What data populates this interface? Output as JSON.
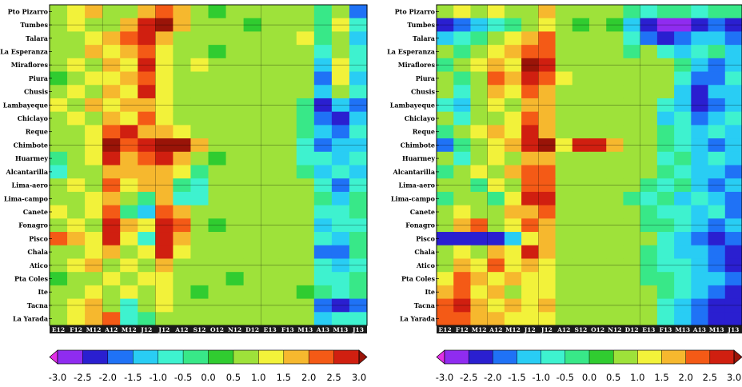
{
  "palette": [
    "#e22fe6",
    "#8f2cf0",
    "#2a1fd0",
    "#1f72f6",
    "#29cdf4",
    "#3ef2cf",
    "#38e888",
    "#30cc30",
    "#9ee23a",
    "#f2f23a",
    "#f6b82e",
    "#f45a16",
    "#d01f10",
    "#9a1408"
  ],
  "stations": [
    "Pto Pizarro",
    "Tumbes",
    "Talara",
    "La Esperanza",
    "Miraflores",
    "Piura",
    "Chusis",
    "Lambayeque",
    "Chiclayo",
    "Reque",
    "Chimbote",
    "Huarmey",
    "Alcantarilla",
    "Lima-aero",
    "Lima-campo",
    "Canete",
    "Fonagro",
    "Pisco",
    "Chala",
    "Atico",
    "Pta Coles",
    "Ite",
    "Tacna",
    "La Yarada"
  ],
  "colorbar_ticks": [
    "-3.0",
    "-2.5",
    "-2.0",
    "-1.5",
    "-1.0",
    "-0.5",
    "0.0",
    "0.5",
    "1.0",
    "1.5",
    "2.0",
    "2.5",
    "3.0"
  ],
  "chart_data": [
    {
      "type": "heatmap",
      "title": "",
      "xlabel": "",
      "ylabel": "",
      "x_categories": [
        "E12",
        "F12",
        "M12",
        "A12",
        "M12",
        "J12",
        "J12",
        "A12",
        "S12",
        "O12",
        "N12",
        "D12",
        "E13",
        "F13",
        "M13",
        "A13",
        "M13",
        "J13"
      ],
      "y_categories": [
        "Pto Pizarro",
        "Tumbes",
        "Talara",
        "La Esperanza",
        "Miraflores",
        "Piura",
        "Chusis",
        "Lambayeque",
        "Chiclayo",
        "Reque",
        "Chimbote",
        "Huarmey",
        "Alcantarilla",
        "Lima-aero",
        "Lima-campo",
        "Canete",
        "Fonagro",
        "Pisco",
        "Chala",
        "Atico",
        "Pta Coles",
        "Ite",
        "Tacna",
        "La Yarada"
      ],
      "value_range": [
        -3.0,
        3.0
      ],
      "values": [
        [
          0.8,
          1.0,
          1.5,
          0.5,
          0.8,
          1.8,
          2.0,
          1.5,
          0.6,
          0.4,
          0.5,
          0.5,
          0.5,
          0.7,
          0.8,
          -0.5,
          0.5,
          -1.8
        ],
        [
          0.6,
          1.2,
          0.8,
          0.5,
          1.5,
          2.5,
          3.0,
          1.8,
          0.5,
          0.5,
          0.5,
          0.3,
          0.5,
          0.8,
          0.5,
          -0.5,
          1.0,
          -1.0
        ],
        [
          0.5,
          0.8,
          1.0,
          1.5,
          2.0,
          2.5,
          1.5,
          0.8,
          0.6,
          0.8,
          0.5,
          0.5,
          0.5,
          0.5,
          1.0,
          -0.5,
          0.8,
          -1.2
        ],
        [
          0.8,
          0.5,
          1.5,
          1.0,
          1.8,
          2.0,
          1.0,
          0.8,
          0.5,
          0.3,
          0.8,
          0.5,
          0.6,
          0.5,
          0.8,
          -0.8,
          0.8,
          -0.8
        ],
        [
          0.5,
          1.0,
          0.8,
          1.5,
          1.0,
          2.5,
          1.0,
          0.5,
          1.0,
          0.5,
          0.5,
          0.8,
          0.5,
          0.8,
          0.5,
          -1.5,
          1.2,
          -1.0
        ],
        [
          0.3,
          0.8,
          1.2,
          1.0,
          1.5,
          2.0,
          1.2,
          0.8,
          0.5,
          0.8,
          0.5,
          0.5,
          0.8,
          0.5,
          0.5,
          -2.0,
          1.0,
          -1.5
        ],
        [
          0.8,
          1.0,
          0.8,
          1.8,
          1.0,
          2.8,
          1.0,
          0.5,
          0.8,
          0.5,
          0.8,
          0.5,
          0.5,
          0.8,
          0.5,
          -1.5,
          0.5,
          -1.0
        ],
        [
          1.0,
          0.5,
          1.5,
          1.0,
          1.8,
          1.5,
          1.2,
          0.8,
          0.5,
          0.5,
          0.5,
          0.8,
          0.8,
          0.5,
          -0.5,
          -2.5,
          -1.5,
          -2.0
        ],
        [
          0.5,
          1.0,
          0.8,
          1.5,
          1.0,
          2.0,
          1.0,
          0.5,
          0.8,
          0.5,
          0.8,
          0.5,
          0.5,
          0.8,
          -0.5,
          -2.0,
          -2.5,
          -1.5
        ],
        [
          0.8,
          0.5,
          1.2,
          2.0,
          2.5,
          1.5,
          1.5,
          1.2,
          0.8,
          0.5,
          0.5,
          0.5,
          0.8,
          0.5,
          -0.5,
          -1.5,
          -2.0,
          -1.0
        ],
        [
          0.5,
          0.8,
          1.0,
          3.0,
          2.0,
          2.8,
          3.0,
          3.0,
          1.5,
          0.5,
          0.8,
          0.5,
          0.5,
          0.8,
          -0.8,
          -2.0,
          -1.5,
          -1.5
        ],
        [
          -0.5,
          0.5,
          1.0,
          2.5,
          1.5,
          2.0,
          2.5,
          1.8,
          0.5,
          0.3,
          0.5,
          0.5,
          0.5,
          0.5,
          -1.0,
          -1.0,
          -1.5,
          -1.0
        ],
        [
          -1.0,
          0.8,
          0.5,
          1.5,
          1.5,
          1.5,
          1.8,
          1.0,
          -0.5,
          0.5,
          0.5,
          0.8,
          0.8,
          0.5,
          -0.5,
          -1.5,
          -1.0,
          -1.5
        ],
        [
          0.5,
          1.0,
          0.8,
          2.0,
          1.0,
          1.5,
          1.5,
          -0.5,
          -1.0,
          0.5,
          0.8,
          0.5,
          0.5,
          0.5,
          0.5,
          -1.0,
          -2.0,
          -1.0
        ],
        [
          0.8,
          0.5,
          1.2,
          1.5,
          0.5,
          -0.5,
          1.8,
          -0.8,
          -1.0,
          0.8,
          0.5,
          0.5,
          0.5,
          0.8,
          0.5,
          -0.5,
          -1.5,
          -0.5
        ],
        [
          1.0,
          0.8,
          1.0,
          2.0,
          -0.5,
          -1.5,
          2.0,
          1.5,
          0.5,
          0.5,
          0.5,
          0.8,
          0.5,
          0.5,
          0.5,
          -1.0,
          -0.8,
          -0.5
        ],
        [
          0.5,
          1.0,
          0.8,
          2.5,
          1.5,
          1.0,
          2.5,
          2.0,
          0.5,
          0.3,
          0.5,
          0.5,
          0.8,
          0.5,
          0.8,
          -1.5,
          -1.0,
          -0.8
        ],
        [
          2.0,
          1.5,
          1.0,
          2.5,
          1.0,
          -1.0,
          2.8,
          1.5,
          0.8,
          0.5,
          0.5,
          0.5,
          0.5,
          0.8,
          0.5,
          -1.0,
          -1.5,
          -0.5
        ],
        [
          0.5,
          0.8,
          1.0,
          1.5,
          0.5,
          1.0,
          2.5,
          1.0,
          0.5,
          0.5,
          0.5,
          0.5,
          0.5,
          0.5,
          0.8,
          -1.8,
          -2.0,
          -0.5
        ],
        [
          0.5,
          1.0,
          1.5,
          0.8,
          1.0,
          0.5,
          1.5,
          0.8,
          0.5,
          0.5,
          0.5,
          0.8,
          0.5,
          0.5,
          0.5,
          -1.0,
          -1.5,
          -1.0
        ],
        [
          0.3,
          0.5,
          0.8,
          1.0,
          0.5,
          1.0,
          1.2,
          0.5,
          0.5,
          0.5,
          0.3,
          0.5,
          0.5,
          0.5,
          0.5,
          -0.8,
          -1.0,
          -0.5
        ],
        [
          0.5,
          0.8,
          1.0,
          0.5,
          1.0,
          0.8,
          1.0,
          0.5,
          0.3,
          0.5,
          0.5,
          0.5,
          0.5,
          0.5,
          0.3,
          -0.5,
          -1.0,
          -0.5
        ],
        [
          0.5,
          1.0,
          1.5,
          0.5,
          -1.0,
          0.5,
          1.0,
          0.8,
          0.5,
          0.5,
          0.5,
          0.5,
          0.5,
          0.5,
          0.5,
          -2.0,
          -2.5,
          -2.0
        ],
        [
          0.8,
          1.0,
          1.8,
          2.0,
          -1.0,
          -0.5,
          0.8,
          0.5,
          0.5,
          0.5,
          0.5,
          0.5,
          0.5,
          0.5,
          0.5,
          -1.5,
          -1.0,
          -1.0
        ]
      ]
    },
    {
      "type": "heatmap",
      "title": "",
      "xlabel": "",
      "ylabel": "",
      "x_categories": [
        "E12",
        "F12",
        "M12",
        "A12",
        "M12",
        "J12",
        "J12",
        "A12",
        "S12",
        "O12",
        "N12",
        "D12",
        "E13",
        "F13",
        "M13",
        "A13",
        "M13",
        "J13"
      ],
      "y_categories": [
        "Pto Pizarro",
        "Tumbes",
        "Talara",
        "La Esperanza",
        "Miraflores",
        "Piura",
        "Chusis",
        "Lambayeque",
        "Chiclayo",
        "Reque",
        "Chimbote",
        "Huarmey",
        "Alcantarilla",
        "Lima-aero",
        "Lima-campo",
        "Canete",
        "Fonagro",
        "Pisco",
        "Chala",
        "Atico",
        "Pta Coles",
        "Ite",
        "Tacna",
        "La Yarada"
      ],
      "value_range": [
        -3.0,
        3.0
      ],
      "values": [
        [
          0.5,
          1.0,
          0.8,
          1.0,
          0.5,
          0.8,
          1.5,
          0.8,
          0.5,
          0.5,
          0.5,
          -0.5,
          -0.8,
          -0.5,
          -0.5,
          -0.8,
          -0.5,
          -0.5
        ],
        [
          -2.5,
          -2.0,
          -1.5,
          -1.0,
          -0.5,
          0.5,
          1.0,
          0.5,
          0.3,
          0.5,
          0.0,
          -1.5,
          -2.5,
          -3.0,
          -3.0,
          -2.5,
          -2.0,
          -2.5
        ],
        [
          -1.5,
          -1.0,
          -0.5,
          0.5,
          1.0,
          1.5,
          2.0,
          0.8,
          0.5,
          0.5,
          0.5,
          -1.0,
          -2.0,
          -2.5,
          -2.0,
          -1.5,
          -1.5,
          -2.0
        ],
        [
          0.5,
          -0.5,
          0.5,
          1.0,
          1.5,
          2.0,
          2.0,
          0.8,
          0.5,
          0.5,
          0.5,
          -0.5,
          0.5,
          -1.0,
          -1.5,
          -1.0,
          -0.5,
          -1.5
        ],
        [
          -0.5,
          0.5,
          1.0,
          1.5,
          1.0,
          3.0,
          2.5,
          0.8,
          0.5,
          0.5,
          0.8,
          0.5,
          0.5,
          0.8,
          -0.5,
          -1.5,
          -2.0,
          -1.5
        ],
        [
          0.5,
          -0.5,
          0.8,
          2.0,
          1.5,
          2.5,
          2.0,
          1.0,
          0.5,
          0.5,
          0.5,
          0.5,
          0.8,
          0.5,
          -1.0,
          -2.0,
          -2.0,
          -1.0
        ],
        [
          0.8,
          -1.0,
          0.5,
          1.5,
          1.0,
          2.0,
          1.5,
          0.8,
          0.5,
          0.5,
          0.5,
          0.5,
          0.5,
          0.8,
          -1.5,
          -2.5,
          -1.5,
          -1.5
        ],
        [
          -1.0,
          -1.5,
          0.5,
          1.0,
          0.8,
          1.5,
          1.8,
          0.5,
          0.5,
          0.5,
          0.5,
          0.5,
          0.5,
          -1.0,
          -1.5,
          -2.5,
          -2.0,
          -1.5
        ],
        [
          0.5,
          -1.0,
          0.5,
          0.8,
          1.0,
          2.0,
          1.5,
          0.5,
          0.5,
          0.5,
          0.5,
          0.5,
          0.5,
          -1.5,
          -1.0,
          -2.0,
          -1.5,
          -1.0
        ],
        [
          -0.5,
          0.5,
          1.0,
          1.5,
          1.0,
          2.5,
          1.8,
          0.8,
          0.5,
          0.5,
          0.5,
          0.8,
          0.5,
          -0.5,
          -1.0,
          -1.5,
          -1.0,
          -1.5
        ],
        [
          -2.0,
          -0.5,
          0.5,
          1.0,
          1.5,
          2.8,
          3.0,
          1.0,
          2.5,
          2.5,
          1.5,
          0.5,
          0.5,
          -0.5,
          -1.0,
          -1.5,
          -2.0,
          -1.5
        ],
        [
          0.5,
          -1.0,
          0.5,
          1.0,
          0.8,
          1.5,
          1.5,
          0.5,
          0.5,
          0.5,
          0.5,
          0.5,
          0.5,
          -1.0,
          -0.5,
          -1.5,
          -1.0,
          -1.5
        ],
        [
          -0.5,
          0.5,
          1.0,
          0.8,
          1.5,
          2.0,
          2.0,
          0.5,
          0.5,
          0.5,
          0.5,
          0.5,
          0.5,
          -0.5,
          -1.0,
          -1.5,
          -1.5,
          -2.0
        ],
        [
          0.5,
          0.5,
          -0.5,
          1.0,
          0.5,
          2.0,
          2.0,
          0.5,
          0.5,
          0.5,
          0.5,
          0.5,
          -0.5,
          -1.0,
          -0.5,
          -1.5,
          -2.0,
          -1.5
        ],
        [
          -0.5,
          0.8,
          0.5,
          -0.5,
          1.0,
          2.5,
          2.5,
          0.5,
          0.5,
          0.5,
          0.5,
          -0.5,
          -1.0,
          -0.5,
          -1.5,
          -1.0,
          -1.5,
          -2.0
        ],
        [
          0.5,
          1.0,
          0.5,
          0.5,
          1.5,
          1.5,
          2.0,
          0.5,
          0.5,
          0.5,
          0.5,
          0.5,
          -0.5,
          -1.0,
          -1.0,
          -1.5,
          -1.0,
          -2.0
        ],
        [
          0.5,
          1.5,
          2.0,
          0.5,
          1.0,
          2.0,
          1.5,
          0.5,
          0.5,
          0.5,
          0.5,
          0.5,
          -0.5,
          -0.5,
          -1.0,
          -1.5,
          -2.0,
          -1.5
        ],
        [
          -2.5,
          -2.5,
          -2.5,
          -2.5,
          -1.5,
          1.0,
          1.5,
          0.5,
          0.5,
          0.5,
          0.5,
          0.5,
          0.5,
          -1.0,
          -1.5,
          -2.0,
          -2.5,
          -2.0
        ],
        [
          0.5,
          1.0,
          0.5,
          1.5,
          1.0,
          2.5,
          1.5,
          0.5,
          0.5,
          0.5,
          0.5,
          0.5,
          -0.5,
          -1.0,
          -1.5,
          -1.5,
          -2.0,
          -2.5
        ],
        [
          0.5,
          1.5,
          1.0,
          2.0,
          1.0,
          1.5,
          1.0,
          0.5,
          0.5,
          0.5,
          0.5,
          0.5,
          -0.5,
          -1.0,
          -1.0,
          -1.5,
          -2.0,
          -2.5
        ],
        [
          1.0,
          2.0,
          1.5,
          1.0,
          1.5,
          1.0,
          1.0,
          0.5,
          0.5,
          0.5,
          0.5,
          0.5,
          -0.5,
          -0.5,
          -1.0,
          -1.5,
          -1.5,
          -2.0
        ],
        [
          1.5,
          2.0,
          1.0,
          1.5,
          0.5,
          1.0,
          1.0,
          0.5,
          0.5,
          0.5,
          0.5,
          0.5,
          0.5,
          -0.5,
          -1.0,
          -1.5,
          -2.0,
          -2.5
        ],
        [
          2.0,
          2.5,
          1.5,
          1.0,
          1.5,
          1.0,
          1.5,
          0.5,
          0.5,
          0.5,
          0.5,
          0.5,
          0.5,
          -1.0,
          -1.5,
          -2.0,
          -2.5,
          -2.5
        ],
        [
          2.0,
          2.0,
          1.5,
          1.5,
          1.0,
          1.0,
          1.0,
          0.5,
          0.5,
          0.5,
          0.5,
          0.5,
          0.5,
          -1.0,
          -1.5,
          -2.0,
          -2.5,
          -2.5
        ]
      ]
    }
  ]
}
